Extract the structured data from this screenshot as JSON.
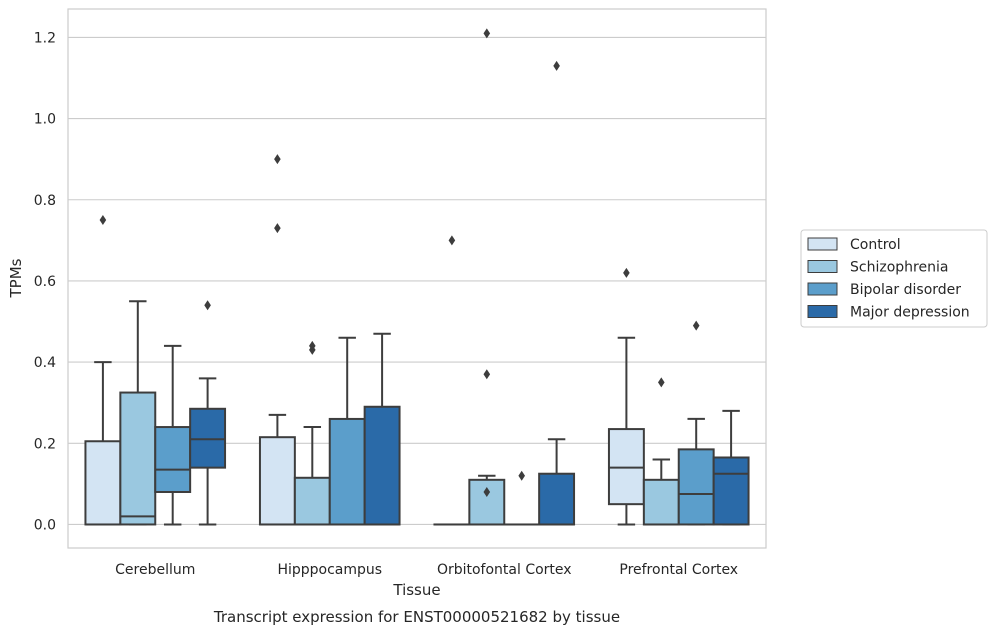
{
  "chart_data": {
    "type": "box",
    "caption": "Transcript expression for ENST00000521682 by tissue",
    "xlabel": "Tissue",
    "ylabel": "TPMs",
    "ylim": [
      -0.058,
      1.27
    ],
    "yticks": [
      0.0,
      0.2,
      0.4,
      0.6,
      0.8,
      1.0,
      1.2
    ],
    "ytick_labels": [
      "0.0",
      "0.2",
      "0.4",
      "0.6",
      "0.8",
      "1.0",
      "1.2"
    ],
    "grid": "horizontal",
    "legend_position": "right",
    "categories": [
      "Cerebellum",
      "Hipppocampus",
      "Orbitofontal Cortex",
      "Prefrontal Cortex"
    ],
    "series": [
      {
        "name": "Control",
        "color": "#d3e4f3",
        "boxes": [
          {
            "min": 0.0,
            "q1": 0.0,
            "median": 0.0,
            "q3": 0.205,
            "max": 0.4,
            "outliers": [
              0.75
            ]
          },
          {
            "min": 0.0,
            "q1": 0.0,
            "median": 0.0,
            "q3": 0.215,
            "max": 0.27,
            "outliers": [
              0.73,
              0.9
            ]
          },
          {
            "min": 0.0,
            "q1": 0.0,
            "median": 0.0,
            "q3": 0.0,
            "max": 0.0,
            "outliers": [
              0.7
            ]
          },
          {
            "min": 0.0,
            "q1": 0.05,
            "median": 0.14,
            "q3": 0.235,
            "max": 0.46,
            "outliers": [
              0.62
            ]
          }
        ]
      },
      {
        "name": "Schizophrenia",
        "color": "#9ac8e0",
        "boxes": [
          {
            "min": 0.0,
            "q1": 0.0,
            "median": 0.02,
            "q3": 0.325,
            "max": 0.55,
            "outliers": []
          },
          {
            "min": 0.0,
            "q1": 0.0,
            "median": 0.0,
            "q3": 0.115,
            "max": 0.24,
            "outliers": [
              0.43,
              0.44
            ]
          },
          {
            "min": 0.0,
            "q1": 0.0,
            "median": 0.0,
            "q3": 0.11,
            "max": 0.12,
            "outliers": [
              0.08,
              0.37,
              1.21
            ]
          },
          {
            "min": 0.0,
            "q1": 0.0,
            "median": 0.0,
            "q3": 0.11,
            "max": 0.16,
            "outliers": [
              0.35
            ]
          }
        ]
      },
      {
        "name": "Bipolar disorder",
        "color": "#5b9ecb",
        "boxes": [
          {
            "min": 0.0,
            "q1": 0.08,
            "median": 0.135,
            "q3": 0.24,
            "max": 0.44,
            "outliers": []
          },
          {
            "min": 0.0,
            "q1": 0.0,
            "median": 0.0,
            "q3": 0.26,
            "max": 0.46,
            "outliers": []
          },
          {
            "min": 0.0,
            "q1": 0.0,
            "median": 0.0,
            "q3": 0.0,
            "max": 0.0,
            "outliers": [
              0.12
            ]
          },
          {
            "min": 0.0,
            "q1": 0.0,
            "median": 0.075,
            "q3": 0.185,
            "max": 0.26,
            "outliers": [
              0.49
            ]
          }
        ]
      },
      {
        "name": "Major depression",
        "color": "#2a6aa8",
        "boxes": [
          {
            "min": 0.0,
            "q1": 0.14,
            "median": 0.21,
            "q3": 0.285,
            "max": 0.36,
            "outliers": [
              0.54
            ]
          },
          {
            "min": 0.0,
            "q1": 0.0,
            "median": 0.0,
            "q3": 0.29,
            "max": 0.47,
            "outliers": []
          },
          {
            "min": 0.0,
            "q1": 0.0,
            "median": 0.0,
            "q3": 0.125,
            "max": 0.21,
            "outliers": [
              1.13
            ]
          },
          {
            "min": 0.0,
            "q1": 0.0,
            "median": 0.125,
            "q3": 0.165,
            "max": 0.28,
            "outliers": []
          }
        ]
      }
    ]
  }
}
